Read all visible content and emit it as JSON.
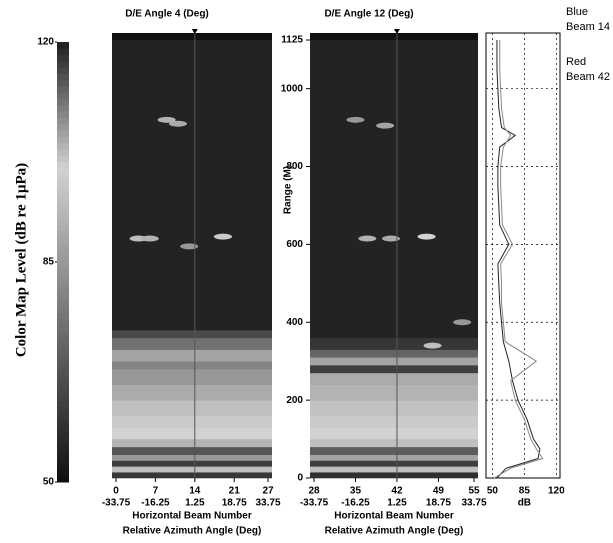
{
  "chart_data": [
    {
      "type": "colorbar",
      "ylabel": "Color Map Level (dB re 1µPa)",
      "ylim": [
        50,
        120
      ],
      "yticks": [
        50,
        85,
        120
      ]
    },
    {
      "type": "heatmap",
      "title": "D/E Angle 4 (Deg)",
      "xlabel": "Horizontal Beam Number",
      "x2label": "Relative Azimuth Angle (Deg)",
      "xlim": [
        0,
        27
      ],
      "xticks": [
        0,
        7,
        14,
        21,
        27
      ],
      "x2lim": [
        -33.75,
        33.75
      ],
      "x2ticks": [
        -33.75,
        -16.25,
        1.25,
        18.75,
        33.75
      ],
      "ylim": [
        0,
        1125
      ],
      "range_edges": [
        0,
        15,
        30,
        45,
        60,
        80,
        100,
        130,
        160,
        200,
        240,
        280,
        300,
        330,
        360,
        380,
        1125
      ],
      "levels": [
        60,
        95,
        62,
        85,
        68,
        92,
        100,
        98,
        95,
        90,
        85,
        80,
        88,
        75,
        65,
        55
      ],
      "hotspots": {
        "x": [
          9,
          11,
          4,
          6,
          19,
          13
        ],
        "range": [
          920,
          910,
          615,
          615,
          620,
          595
        ],
        "level": [
          92,
          90,
          95,
          92,
          98,
          85
        ]
      }
    },
    {
      "type": "heatmap",
      "title": "D/E Angle 12 (Deg)",
      "xlabel": "Horizontal Beam Number",
      "x2label": "Relative Azimuth Angle (Deg)",
      "xlim": [
        28,
        55
      ],
      "xticks": [
        28,
        35,
        42,
        49,
        55
      ],
      "x2lim": [
        -33.75,
        33.75
      ],
      "x2ticks": [
        -33.75,
        -16.25,
        1.25,
        18.75,
        33.75
      ],
      "ylim": [
        0,
        1125
      ],
      "ylabel": "Range (M)",
      "yticks": [
        0,
        200,
        400,
        600,
        800,
        1000,
        1125
      ],
      "range_edges": [
        0,
        15,
        30,
        45,
        60,
        80,
        100,
        130,
        160,
        200,
        240,
        270,
        290,
        310,
        330,
        360,
        1125
      ],
      "levels": [
        58,
        95,
        62,
        88,
        70,
        95,
        100,
        98,
        96,
        92,
        90,
        62,
        88,
        72,
        60,
        55
      ],
      "hotspots": {
        "x": [
          35,
          40,
          37,
          41,
          47,
          53,
          48
        ],
        "range": [
          920,
          905,
          615,
          615,
          620,
          400,
          340
        ],
        "level": [
          85,
          88,
          92,
          90,
          100,
          85,
          95
        ]
      }
    },
    {
      "type": "line",
      "xlabel": "dB",
      "xlim": [
        43,
        124
      ],
      "xticks": [
        50,
        85,
        120
      ],
      "ylim": [
        0,
        1125
      ],
      "yticks": [
        200,
        400,
        600,
        800,
        1000
      ],
      "grid": true,
      "y": [
        0,
        25,
        50,
        75,
        100,
        150,
        200,
        250,
        300,
        350,
        400,
        450,
        500,
        550,
        600,
        650,
        700,
        750,
        800,
        850,
        880,
        900,
        950,
        1000,
        1050,
        1100,
        1125
      ],
      "series": [
        {
          "name": "Blue Beam 14",
          "color": "#222222",
          "values": [
            55,
            65,
            100,
            102,
            95,
            88,
            78,
            72,
            68,
            62,
            60,
            58,
            57,
            56,
            68,
            58,
            57,
            56,
            56,
            58,
            75,
            60,
            57,
            56,
            55,
            55,
            55
          ]
        },
        {
          "name": "Red Beam 42",
          "color": "#888888",
          "values": [
            52,
            70,
            105,
            98,
            92,
            85,
            75,
            70,
            98,
            64,
            62,
            60,
            60,
            59,
            72,
            61,
            60,
            59,
            59,
            62,
            70,
            63,
            60,
            59,
            58,
            58,
            58
          ]
        }
      ]
    }
  ]
}
